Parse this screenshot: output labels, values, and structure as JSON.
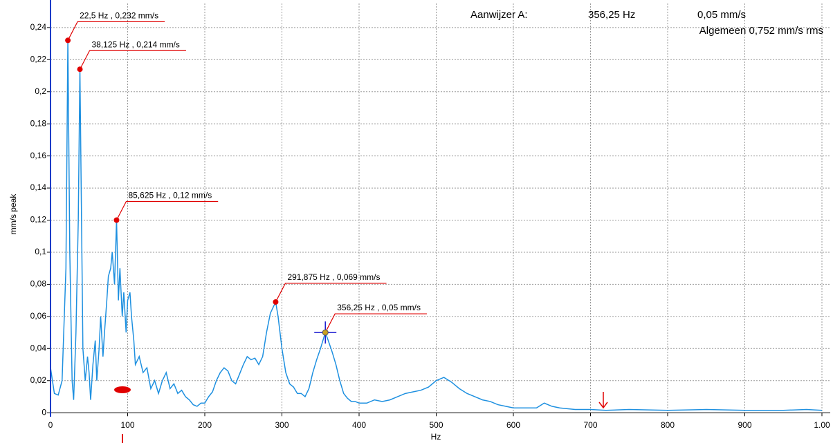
{
  "chart_data": {
    "type": "line",
    "header": [
      "Aanwijzer A:",
      "356,25 Hz",
      "0,05 mm/s",
      "Algemeen 0,752 mm/s rms"
    ],
    "x_label": "Hz",
    "y_label": "mm/s peak",
    "xlim": [
      0,
      1000
    ],
    "ylim": [
      -0.0025,
      0.255
    ],
    "xticks": [
      0,
      100,
      200,
      300,
      400,
      500,
      600,
      700,
      800,
      900,
      {
        "value": 1000,
        "label": "1.00"
      }
    ],
    "yticks": [
      0,
      {
        "value": 0.02,
        "label": "0,02"
      },
      {
        "value": 0.04,
        "label": "0,04"
      },
      {
        "value": 0.06,
        "label": "0,06"
      },
      {
        "value": 0.08,
        "label": "0,08"
      },
      {
        "value": 0.1,
        "label": "0,1"
      },
      {
        "value": 0.12,
        "label": "0,12"
      },
      {
        "value": 0.14,
        "label": "0,14"
      },
      {
        "value": 0.16,
        "label": "0,16"
      },
      {
        "value": 0.18,
        "label": "0,18"
      },
      {
        "value": 0.2,
        "label": "0,2"
      },
      {
        "value": 0.22,
        "label": "0,22"
      },
      {
        "value": 0.24,
        "label": "0,24"
      }
    ],
    "grid": true,
    "series": [
      {
        "color": "#1e90e0",
        "x": [
          0,
          5,
          10,
          15,
          20,
          22.5,
          25,
          28,
          30,
          33,
          36,
          38.125,
          40,
          42,
          45,
          48,
          50,
          52,
          55,
          58,
          60,
          63,
          65,
          68,
          70,
          73,
          75,
          78,
          80,
          83,
          85.625,
          88,
          90,
          93,
          95,
          98,
          100,
          103,
          105,
          108,
          110,
          115,
          120,
          125,
          130,
          135,
          140,
          145,
          150,
          155,
          160,
          165,
          170,
          175,
          180,
          185,
          190,
          195,
          200,
          205,
          210,
          215,
          220,
          225,
          230,
          235,
          240,
          245,
          250,
          255,
          260,
          265,
          270,
          275,
          280,
          285,
          291.875,
          295,
          300,
          305,
          310,
          315,
          320,
          325,
          330,
          335,
          340,
          345,
          350,
          356.25,
          360,
          365,
          370,
          375,
          380,
          385,
          390,
          395,
          400,
          410,
          420,
          430,
          440,
          450,
          460,
          470,
          480,
          490,
          500,
          510,
          520,
          530,
          540,
          550,
          560,
          570,
          580,
          590,
          600,
          620,
          630,
          640,
          650,
          660,
          680,
          700,
          720,
          750,
          800,
          850,
          900,
          950,
          980,
          1000
        ],
        "values": [
          0.028,
          0.012,
          0.011,
          0.02,
          0.09,
          0.232,
          0.1,
          0.02,
          0.008,
          0.05,
          0.12,
          0.214,
          0.13,
          0.04,
          0.02,
          0.035,
          0.025,
          0.008,
          0.03,
          0.045,
          0.02,
          0.04,
          0.06,
          0.035,
          0.05,
          0.07,
          0.085,
          0.09,
          0.1,
          0.08,
          0.12,
          0.07,
          0.09,
          0.06,
          0.075,
          0.05,
          0.07,
          0.075,
          0.06,
          0.045,
          0.03,
          0.035,
          0.025,
          0.028,
          0.015,
          0.02,
          0.012,
          0.02,
          0.025,
          0.015,
          0.018,
          0.012,
          0.014,
          0.01,
          0.008,
          0.005,
          0.004,
          0.006,
          0.006,
          0.01,
          0.013,
          0.02,
          0.025,
          0.028,
          0.026,
          0.02,
          0.018,
          0.024,
          0.03,
          0.035,
          0.033,
          0.034,
          0.03,
          0.035,
          0.05,
          0.062,
          0.069,
          0.06,
          0.04,
          0.025,
          0.018,
          0.016,
          0.012,
          0.012,
          0.01,
          0.015,
          0.025,
          0.033,
          0.04,
          0.05,
          0.045,
          0.038,
          0.03,
          0.02,
          0.012,
          0.009,
          0.007,
          0.007,
          0.006,
          0.006,
          0.008,
          0.007,
          0.008,
          0.01,
          0.012,
          0.013,
          0.014,
          0.016,
          0.02,
          0.022,
          0.019,
          0.015,
          0.012,
          0.01,
          0.008,
          0.007,
          0.005,
          0.004,
          0.003,
          0.003,
          0.003,
          0.006,
          0.004,
          0.003,
          0.002,
          0.002,
          0.0015,
          0.002,
          0.0015,
          0.002,
          0.0015,
          0.0015,
          0.002,
          0.0015
        ]
      }
    ],
    "peaks": [
      {
        "x": 22.5,
        "y": 0.232,
        "label": "22,5 Hz , 0,232 mm/s"
      },
      {
        "x": 38.125,
        "y": 0.214,
        "label": "38,125 Hz , 0,214 mm/s"
      },
      {
        "x": 85.625,
        "y": 0.12,
        "label": "85,625 Hz , 0,12 mm/s"
      },
      {
        "x": 291.875,
        "y": 0.069,
        "label": "291,875 Hz , 0,069 mm/s"
      }
    ],
    "cursor": {
      "x": 356.25,
      "y": 0.05,
      "label": "356,25 Hz , 0,05 mm/s"
    }
  }
}
